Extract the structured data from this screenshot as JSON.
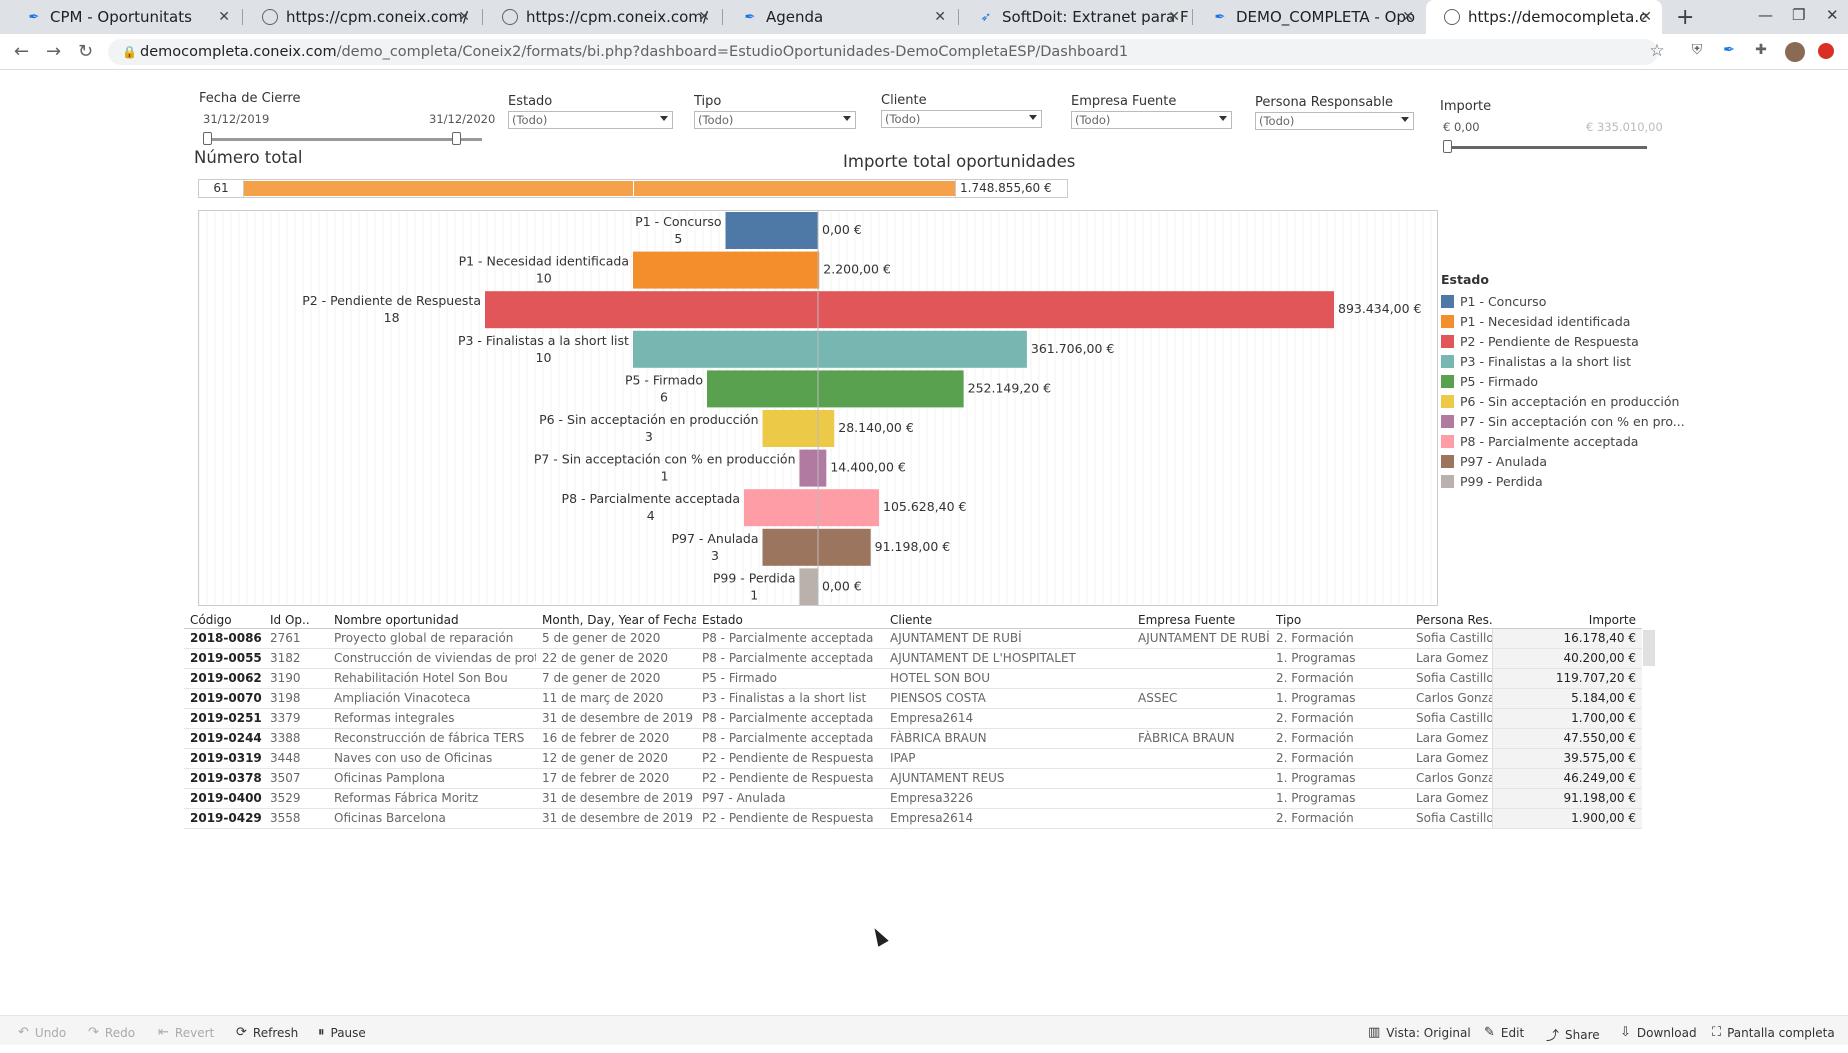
{
  "browser": {
    "tabs": [
      {
        "title": "CPM - Oportunitats",
        "icon": "feather-icon"
      },
      {
        "title": "https://cpm.coneix.com/",
        "icon": "globe-icon"
      },
      {
        "title": "https://cpm.coneix.com/",
        "icon": "globe-icon"
      },
      {
        "title": "Agenda",
        "icon": "feather-icon"
      },
      {
        "title": "SoftDoit: Extranet para F",
        "icon": "softdoit-icon"
      },
      {
        "title": "DEMO_COMPLETA - Opo",
        "icon": "feather-icon"
      },
      {
        "title": "https://democompleta.c",
        "icon": "globe-icon"
      }
    ],
    "url_host": "democompleta.coneix.com",
    "url_path": "/demo_completa/Coneix2/formats/bi.php?dashboard=EstudioOportunidades-DemoCompletaESP/Dashboard1"
  },
  "filters": {
    "fecha_label": "Fecha de Cierre",
    "fecha_from": "31/12/2019",
    "fecha_to": "31/12/2020",
    "estado_label": "Estado",
    "estado_value": "(Todo)",
    "tipo_label": "Tipo",
    "tipo_value": "(Todo)",
    "cliente_label": "Cliente",
    "cliente_value": "(Todo)",
    "empresa_label": "Empresa Fuente",
    "empresa_value": "(Todo)",
    "persona_label": "Persona Responsable",
    "persona_value": "(Todo)",
    "importe_label": "Importe",
    "importe_min": "€ 0,00",
    "importe_max": "€ 335.010,00"
  },
  "kpi": {
    "numero_total_label": "Número total",
    "importe_total_label": "Importe total oportunidades",
    "count": "61",
    "total": "1.748.855,60 €"
  },
  "chart_data": {
    "type": "bar",
    "orientation": "horizontal-diverging-funnel",
    "categories": [
      "P1 - Concurso",
      "P1 - Necesidad identificada",
      "P2 - Pendiente de Respuesta",
      "P3 - Finalistas a la short list",
      "P5 - Firmado",
      "P6 - Sin acceptación en producción",
      "P7 - Sin acceptación con % en producción",
      "P8 - Parcialmente acceptada",
      "P97 - Anulada",
      "P99 - Perdida"
    ],
    "series": [
      {
        "values": [
          5,
          10,
          18,
          10,
          6,
          3,
          1,
          4,
          3,
          1
        ]
      },
      {
        "values": [
          0.0,
          2200.0,
          893434.0,
          361706.0,
          252149.2,
          28140.0,
          14400.0,
          105628.4,
          91198.0,
          0.0
        ]
      }
    ],
    "count_labels": [
      "5",
      "10",
      "18",
      "10",
      "6",
      "3",
      "1",
      "4",
      "3",
      "1"
    ],
    "value_labels": [
      "0,00 €",
      "2.200,00 €",
      "893.434,00 €",
      "361.706,00 €",
      "252.149,20 €",
      "28.140,00 €",
      "14.400,00 €",
      "105.628,40 €",
      "91.198,00 €",
      "0,00 €"
    ],
    "colors": [
      "#4e79a7",
      "#f28e2b",
      "#e15759",
      "#76b7b2",
      "#59a14f",
      "#edc948",
      "#b07aa1",
      "#ff9da7",
      "#9c755f",
      "#bab0ac"
    ],
    "legend_title": "Estado",
    "legend_items": [
      "P1 - Concurso",
      "P1 - Necesidad identificada",
      "P2 - Pendiente de Respuesta",
      "P3 - Finalistas a la short list",
      "P5 - Firmado",
      "P6 - Sin acceptación en producción",
      "P7 - Sin acceptación con % en pro...",
      "P8 - Parcialmente acceptada",
      "P97 - Anulada",
      "P99 - Perdida"
    ],
    "legend_position": "right"
  },
  "table": {
    "headers": [
      "Código",
      "Id Op..",
      "Nombre oportunidad",
      "Month, Day, Year of Fecha..",
      "Estado",
      "Cliente",
      "Empresa Fuente",
      "Tipo",
      "Persona Res..",
      "Importe"
    ],
    "rows": [
      [
        "2018-0086",
        "2761",
        "Proyecto global de reparación",
        "5 de gener de 2020",
        "P8 - Parcialmente acceptada",
        "AJUNTAMENT DE RUBÍ",
        "AJUNTAMENT DE RUBÍ",
        "2. Formación",
        "Sofia Castillo",
        "16.178,40 €"
      ],
      [
        "2019-0055",
        "3182",
        "Construcción de viviendas de prot..",
        "22 de gener de 2020",
        "P8 - Parcialmente acceptada",
        "AJUNTAMENT DE L'HOSPITALET",
        "",
        "1. Programas",
        "Lara Gomez",
        "40.200,00 €"
      ],
      [
        "2019-0062",
        "3190",
        "Rehabilitación Hotel Son Bou",
        "7 de gener de 2020",
        "P5 - Firmado",
        "HOTEL SON BOU",
        "",
        "2. Formación",
        "Sofia Castillo",
        "119.707,20 €"
      ],
      [
        "2019-0070",
        "3198",
        "Ampliación Vinacoteca",
        "11 de març de 2020",
        "P3 - Finalistas a la short list",
        "PIENSOS COSTA",
        "ASSEC",
        "1. Programas",
        "Carlos Gonza..",
        "5.184,00 €"
      ],
      [
        "2019-0251",
        "3379",
        "Reformas integrales",
        "31 de desembre de 2019",
        "P8 - Parcialmente acceptada",
        "Empresa2614",
        "",
        "2. Formación",
        "Sofia Castillo",
        "1.700,00 €"
      ],
      [
        "2019-0244",
        "3388",
        "Reconstrucción de fábrica TERS",
        "16 de febrer de 2020",
        "P8 - Parcialmente acceptada",
        "FÀBRICA BRAUN",
        "FÀBRICA BRAUN",
        "2. Formación",
        "Lara Gomez",
        "47.550,00 €"
      ],
      [
        "2019-0319",
        "3448",
        "Naves con uso de Oficinas",
        "12 de gener de 2020",
        "P2 - Pendiente de Respuesta",
        "IPAP",
        "",
        "2. Formación",
        "Lara Gomez",
        "39.575,00 €"
      ],
      [
        "2019-0378",
        "3507",
        "Oficinas Pamplona",
        "17 de febrer de 2020",
        "P2 - Pendiente de Respuesta",
        "AJUNTAMENT REUS",
        "",
        "1. Programas",
        "Carlos Gonza..",
        "46.249,00 €"
      ],
      [
        "2019-0400",
        "3529",
        "Reformas Fábrica Moritz",
        "31 de desembre de 2019",
        "P97 - Anulada",
        "Empresa3226",
        "",
        "1. Programas",
        "Lara Gomez",
        "91.198,00 €"
      ],
      [
        "2019-0429",
        "3558",
        "Oficinas Barcelona",
        "31 de desembre de 2019",
        "P2 - Pendiente de Respuesta",
        "Empresa2614",
        "",
        "2. Formación",
        "Sofia Castillo",
        "1.900,00 €"
      ]
    ]
  },
  "toolbar": {
    "undo": "Undo",
    "redo": "Redo",
    "revert": "Revert",
    "refresh": "Refresh",
    "pause": "Pause",
    "vista": "Vista: Original",
    "edit": "Edit",
    "share": "Share",
    "download": "Download",
    "fullscreen": "Pantalla completa"
  }
}
